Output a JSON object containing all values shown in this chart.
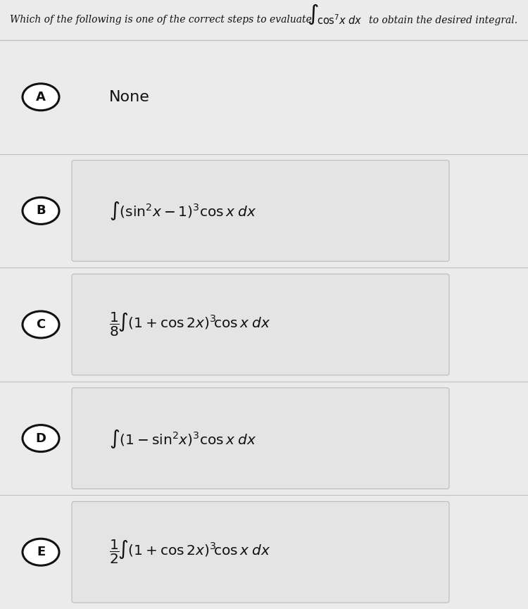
{
  "background_color": "#ebebeb",
  "question_text": "Which of the following is one of the correct steps to evaluate",
  "question_suffix": "to obtain the desired integral.",
  "options_labels": [
    "A",
    "B",
    "C",
    "D",
    "E"
  ],
  "circle_color": "#111111",
  "box_bg_color": "#e4e4e4",
  "box_border_color": "#bbbbbb",
  "row_bg_color": "#ebebeb",
  "text_color": "#111111",
  "divider_color": "#c0c0c0",
  "title_fontsize": 10.0,
  "content_fontsize": 14.5,
  "fig_width": 7.5,
  "fig_height": 8.65,
  "dpi": 100
}
